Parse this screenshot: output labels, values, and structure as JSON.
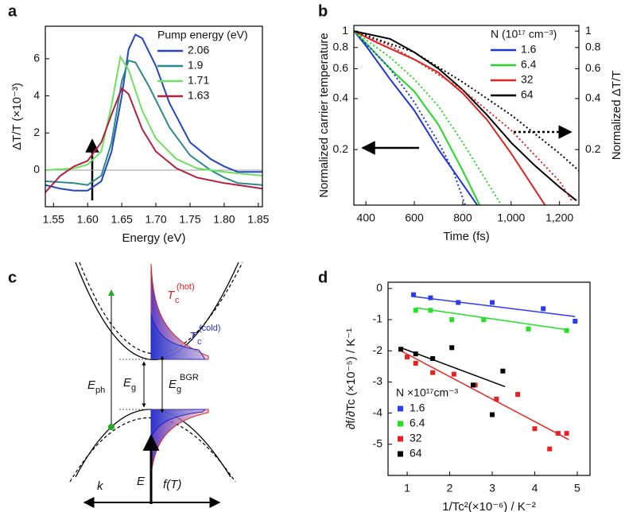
{
  "chart_data": [
    {
      "type": "line",
      "panel": "a",
      "xlabel": "Energy (eV)",
      "ylabel": "ΔT/T (×10⁻³)",
      "xlim": [
        1.538,
        1.856
      ],
      "ylim": [
        -1.97,
        7.75
      ],
      "xticks": [
        1.55,
        {
          "value": 1.6,
          "label": "1.60"
        },
        1.65,
        {
          "value": 1.7,
          "label": "1.70"
        },
        1.75,
        {
          "value": 1.8,
          "label": "1.80"
        },
        1.85
      ],
      "yticks": [
        0,
        2,
        4,
        6
      ],
      "zero_line": true,
      "legend": "upper right",
      "legend_title": "Pump energy (eV)",
      "series": [
        {
          "name": "2.06",
          "color": "#2346c2",
          "x": [
            1.538,
            1.56,
            1.58,
            1.6,
            1.62,
            1.635,
            1.65,
            1.66,
            1.67,
            1.68,
            1.7,
            1.72,
            1.75,
            1.78,
            1.8,
            1.82,
            1.856
          ],
          "values": [
            -0.8,
            -1.0,
            -1.1,
            -1.1,
            -0.6,
            1.0,
            4.0,
            6.5,
            7.3,
            7.1,
            5.6,
            3.6,
            1.5,
            0.6,
            0.2,
            -0.1,
            -0.1
          ]
        },
        {
          "name": "1.9",
          "color": "#2b8a8c",
          "x": [
            1.538,
            1.58,
            1.6,
            1.62,
            1.635,
            1.65,
            1.66,
            1.67,
            1.69,
            1.72,
            1.75,
            1.78,
            1.8,
            1.82,
            1.856
          ],
          "values": [
            -0.6,
            -0.7,
            -0.8,
            -0.3,
            1.5,
            4.8,
            5.9,
            5.8,
            4.5,
            2.3,
            0.8,
            0.0,
            -0.4,
            -0.7,
            -0.8
          ]
        },
        {
          "name": "1.71",
          "color": "#6fe060",
          "x": [
            1.538,
            1.58,
            1.6,
            1.62,
            1.635,
            1.648,
            1.66,
            1.68,
            1.7,
            1.73,
            1.76,
            1.8,
            1.856
          ],
          "values": [
            0,
            0.1,
            0.3,
            1.0,
            3.5,
            6.1,
            5.4,
            3.2,
            1.7,
            0.6,
            0.1,
            -0.1,
            -0.3
          ]
        },
        {
          "name": "1.63",
          "color": "#b3203f",
          "x": [
            1.538,
            1.56,
            1.58,
            1.6,
            1.62,
            1.635,
            1.65,
            1.66,
            1.68,
            1.7,
            1.73,
            1.76,
            1.8,
            1.856
          ],
          "values": [
            -1.2,
            -0.3,
            0.2,
            0.5,
            1.5,
            3.0,
            4.4,
            4.1,
            2.2,
            1.0,
            0.1,
            -0.4,
            -0.7,
            -1.0
          ]
        }
      ]
    },
    {
      "type": "line",
      "panel": "b",
      "xlabel": "Time (fs)",
      "ylabel": "Normalized carrier temperature",
      "y2label": "Normalized ΔT/T",
      "log_y": true,
      "xlim": [
        350,
        1280
      ],
      "ylim": [
        0.094,
        1.08
      ],
      "y2lim": [
        0.094,
        1.08
      ],
      "xticks": [
        400,
        600,
        800,
        {
          "value": 1000,
          "label": "1,000"
        },
        {
          "value": 1200,
          "label": "1,200"
        }
      ],
      "yticks": [
        0.2,
        0.4,
        0.6,
        0.8,
        1
      ],
      "y2ticks": [
        0.2,
        0.4,
        0.6,
        0.8,
        1
      ],
      "legend": "upper right",
      "legend_title": "N (10¹⁷ cm⁻³)",
      "series": [
        {
          "name": "1.6",
          "color": "#1f34d6",
          "x": [
            350,
            400,
            500,
            600,
            700,
            800,
            860
          ],
          "values": [
            1,
            0.82,
            0.52,
            0.34,
            0.2,
            0.125,
            0.094
          ]
        },
        {
          "name": "6.4",
          "color": "#22d822",
          "x": [
            350,
            400,
            500,
            600,
            700,
            800,
            870
          ],
          "values": [
            1,
            0.85,
            0.6,
            0.44,
            0.28,
            0.15,
            0.094
          ]
        },
        {
          "name": "32",
          "color": "#e02222",
          "x": [
            350,
            450,
            600,
            700,
            800,
            900,
            1000,
            1100,
            1140
          ],
          "values": [
            1,
            0.85,
            0.68,
            0.57,
            0.43,
            0.3,
            0.19,
            0.115,
            0.094
          ]
        },
        {
          "name": "64",
          "color": "#000000",
          "x": [
            350,
            500,
            600,
            700,
            800,
            900,
            1000,
            1100,
            1200,
            1270
          ],
          "values": [
            1,
            0.9,
            0.75,
            0.6,
            0.45,
            0.32,
            0.22,
            0.16,
            0.12,
            0.1
          ]
        },
        {
          "color": "#1f34d6",
          "axis": "y2",
          "dash": "dotted",
          "x": [
            350,
            500,
            600,
            700,
            760,
            810
          ],
          "values": [
            1,
            0.6,
            0.38,
            0.22,
            0.15,
            0.094
          ]
        },
        {
          "color": "#22d822",
          "axis": "y2",
          "dash": "dotted",
          "x": [
            350,
            500,
            600,
            700,
            800,
            960
          ],
          "values": [
            1,
            0.7,
            0.52,
            0.36,
            0.22,
            0.094
          ]
        },
        {
          "color": "#e02222",
          "axis": "y2",
          "dash": "dotted",
          "x": [
            350,
            500,
            600,
            800,
            1000,
            1200,
            1250
          ],
          "values": [
            1,
            0.82,
            0.68,
            0.45,
            0.26,
            0.13,
            0.1
          ]
        },
        {
          "color": "#000000",
          "axis": "y2",
          "dash": "dotted",
          "x": [
            350,
            600,
            800,
            1000,
            1200,
            1280
          ],
          "values": [
            1,
            0.75,
            0.5,
            0.32,
            0.19,
            0.15
          ]
        }
      ]
    },
    {
      "type": "scatter",
      "panel": "d",
      "xlabel": "1/Tc²(×10⁻⁶) / K⁻²",
      "ylabel": "∂f/∂Tc (×10⁻⁵) / K⁻¹",
      "xlim": [
        0.55,
        5.3
      ],
      "ylim": [
        -6.0,
        0.2
      ],
      "xticks": [
        1,
        2,
        3,
        4,
        5
      ],
      "yticks": [
        0,
        -1,
        -2,
        -3,
        -4,
        -5
      ],
      "legend": "lower left",
      "legend_title": "N ×10¹⁷cm⁻³",
      "series": [
        {
          "name": "1.6",
          "color": "#2b3cf0",
          "x": [
            1.15,
            1.55,
            2.2,
            3.0,
            4.2,
            4.95
          ],
          "values": [
            -0.2,
            -0.3,
            -0.45,
            -0.45,
            -0.65,
            -1.05
          ],
          "fit": {
            "x": [
              1.1,
              4.95
            ],
            "values": [
              -0.25,
              -0.9
            ]
          }
        },
        {
          "name": "6.4",
          "color": "#22e022",
          "x": [
            1.2,
            1.55,
            2.05,
            2.8,
            3.85,
            4.75
          ],
          "values": [
            -0.7,
            -0.7,
            -1.0,
            -1.0,
            -1.3,
            -1.35
          ],
          "fit": {
            "x": [
              1.2,
              4.8
            ],
            "values": [
              -0.62,
              -1.33
            ]
          }
        },
        {
          "name": "32",
          "color": "#e82222",
          "x": [
            1.0,
            1.2,
            1.6,
            2.1,
            2.6,
            3.1,
            3.6,
            4.0,
            4.35,
            4.55,
            4.75
          ],
          "values": [
            -2.2,
            -2.4,
            -2.7,
            -2.75,
            -3.1,
            -3.55,
            -3.4,
            -4.5,
            -5.15,
            -4.65,
            -4.65
          ],
          "fit": {
            "x": [
              0.85,
              4.8
            ],
            "values": [
              -2.0,
              -4.85
            ]
          }
        },
        {
          "name": "64",
          "color": "#000000",
          "x": [
            0.85,
            1.2,
            1.6,
            2.05,
            2.55,
            3.0,
            3.25
          ],
          "values": [
            -1.95,
            -2.1,
            -2.25,
            -1.9,
            -3.1,
            -4.05,
            -2.65
          ],
          "fit": {
            "x": [
              0.85,
              3.3
            ],
            "values": [
              -1.9,
              -3.15
            ]
          }
        }
      ]
    }
  ],
  "diagram": {
    "panel": "c",
    "hot": {
      "main": "T",
      "sub": "c",
      "sup": "(hot)"
    },
    "cold": {
      "main": "T",
      "sub": "c",
      "sup": "(cold)"
    },
    "photon": {
      "main": "E",
      "sub": "ph"
    },
    "gap": {
      "main": "E",
      "sub": "g"
    },
    "gap_bgr": {
      "main": "E",
      "sub": "g",
      "sup": "BGR"
    },
    "energy_axis": "E",
    "momentum_axis": "k",
    "distribution_axis": "f(T)"
  }
}
